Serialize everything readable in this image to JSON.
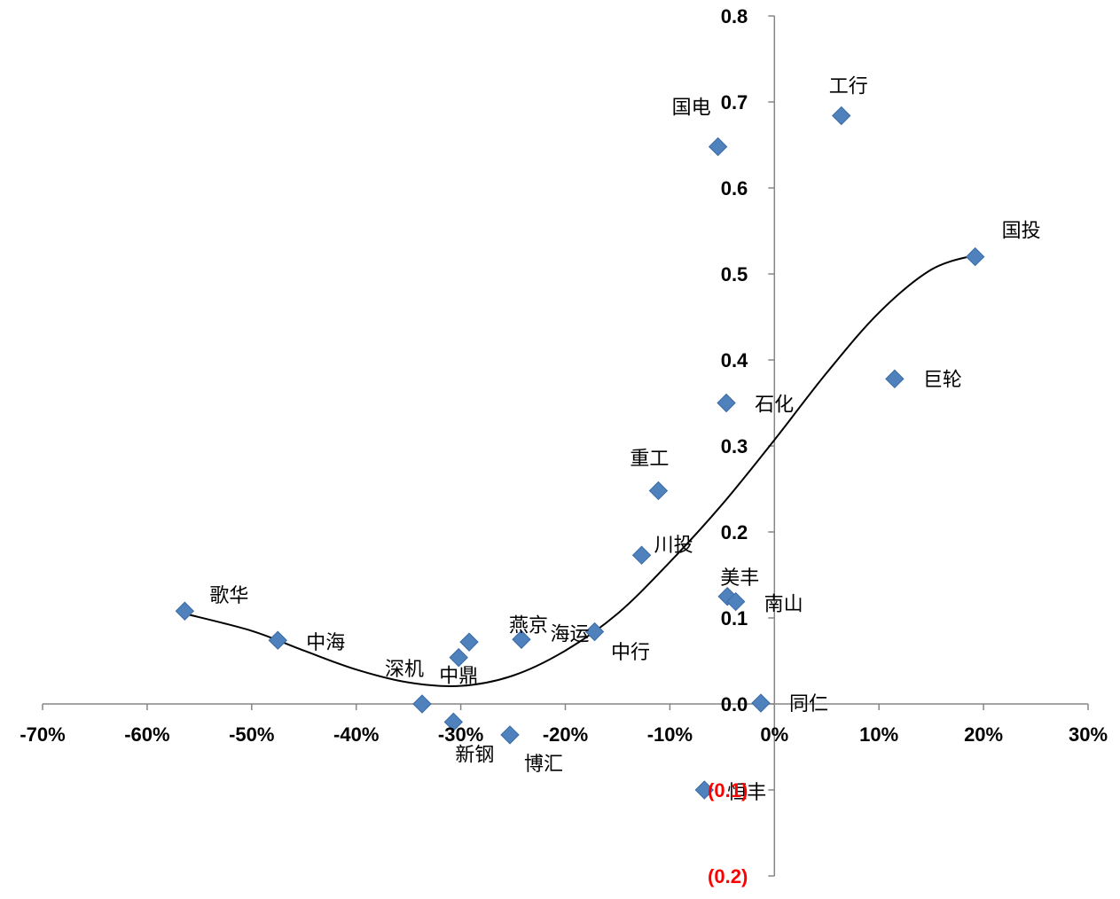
{
  "chart_data": {
    "type": "scatter",
    "title": "",
    "xlabel": "",
    "ylabel": "",
    "xlim": [
      -0.7,
      0.3
    ],
    "ylim": [
      -0.2,
      0.8
    ],
    "grid": false,
    "legend": "none",
    "x_ticks": [
      {
        "v": -0.7,
        "label": "-70%"
      },
      {
        "v": -0.6,
        "label": "-60%"
      },
      {
        "v": -0.5,
        "label": "-50%"
      },
      {
        "v": -0.4,
        "label": "-40%"
      },
      {
        "v": -0.3,
        "label": "-30%"
      },
      {
        "v": -0.2,
        "label": "-20%"
      },
      {
        "v": -0.1,
        "label": "-10%"
      },
      {
        "v": 0.0,
        "label": "0%"
      },
      {
        "v": 0.1,
        "label": "10%"
      },
      {
        "v": 0.2,
        "label": "20%"
      },
      {
        "v": 0.3,
        "label": "30%"
      }
    ],
    "y_ticks": [
      {
        "v": 0.8,
        "label": "0.8"
      },
      {
        "v": 0.7,
        "label": "0.7"
      },
      {
        "v": 0.6,
        "label": "0.6"
      },
      {
        "v": 0.5,
        "label": "0.5"
      },
      {
        "v": 0.4,
        "label": "0.4"
      },
      {
        "v": 0.3,
        "label": "0.3"
      },
      {
        "v": 0.2,
        "label": "0.2"
      },
      {
        "v": 0.1,
        "label": "0.1"
      },
      {
        "v": 0.0,
        "label": "0.0"
      },
      {
        "v": -0.1,
        "label": "(0.1)"
      },
      {
        "v": -0.2,
        "label": "(0.2)"
      }
    ],
    "points": [
      {
        "name": "歌华",
        "x": -0.564,
        "y": 0.108
      },
      {
        "name": "中海",
        "x": -0.475,
        "y": 0.074
      },
      {
        "name": "深机",
        "x": -0.337,
        "y": 0.0
      },
      {
        "name": "新钢",
        "x": -0.307,
        "y": -0.021
      },
      {
        "name": "中鼎",
        "x": -0.302,
        "y": 0.054
      },
      {
        "name": "",
        "x": -0.292,
        "y": 0.072
      },
      {
        "name": "博汇",
        "x": -0.253,
        "y": -0.036
      },
      {
        "name": "燕京",
        "x": -0.242,
        "y": 0.075
      },
      {
        "name": "海运",
        "x": -0.172,
        "y": 0.084
      },
      {
        "name": "川投",
        "x": -0.127,
        "y": 0.173
      },
      {
        "name": "重工",
        "x": -0.111,
        "y": 0.248
      },
      {
        "name": "恒丰",
        "x": -0.067,
        "y": -0.1
      },
      {
        "name": "国电",
        "x": -0.054,
        "y": 0.648
      },
      {
        "name": "石化",
        "x": -0.046,
        "y": 0.35
      },
      {
        "name": "美丰",
        "x": -0.045,
        "y": 0.125
      },
      {
        "name": "南山",
        "x": -0.037,
        "y": 0.119
      },
      {
        "name": "同仁",
        "x": -0.013,
        "y": 0.001
      },
      {
        "name": "工行",
        "x": 0.064,
        "y": 0.684
      },
      {
        "name": "巨轮",
        "x": 0.115,
        "y": 0.378
      },
      {
        "name": "国投",
        "x": 0.192,
        "y": 0.52
      },
      {
        "name": "中行",
        "x": -0.135,
        "y": null
      }
    ],
    "trend_curve": {
      "type": "polynomial",
      "x": [
        -0.564,
        -0.5,
        -0.45,
        -0.4,
        -0.35,
        -0.3,
        -0.25,
        -0.2,
        -0.15,
        -0.1,
        -0.05,
        0.0,
        0.05,
        0.1,
        0.15,
        0.192
      ],
      "y": [
        0.105,
        0.085,
        0.062,
        0.04,
        0.025,
        0.021,
        0.033,
        0.062,
        0.105,
        0.165,
        0.232,
        0.307,
        0.385,
        0.455,
        0.505,
        0.522
      ]
    },
    "colors": {
      "marker": "#4F81BD",
      "marker_stroke": "#3A6BA5",
      "axis": "#868686",
      "trend": "#000000",
      "negative_tick": "#FF0000",
      "tick": "#000000"
    }
  }
}
